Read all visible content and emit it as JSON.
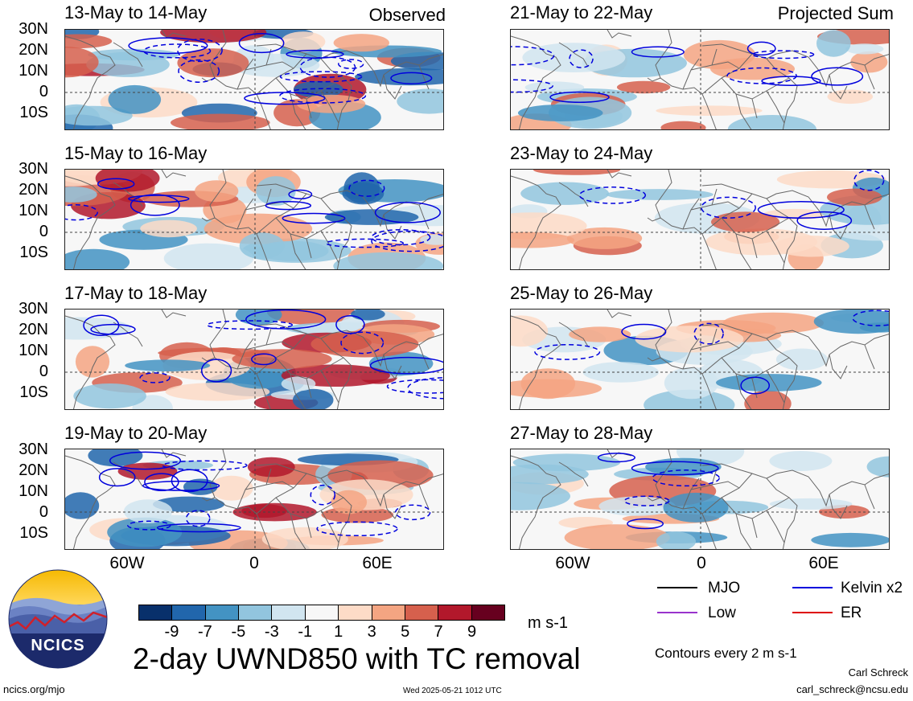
{
  "header": {
    "left_label": "Observed",
    "right_label": "Projected Sum"
  },
  "panels_left": [
    {
      "title": "13-May to 14-May"
    },
    {
      "title": "15-May to 16-May"
    },
    {
      "title": "17-May to 18-May"
    },
    {
      "title": "19-May to 20-May"
    }
  ],
  "panels_right": [
    {
      "title": "21-May to 22-May"
    },
    {
      "title": "23-May to 24-May"
    },
    {
      "title": "25-May to 26-May"
    },
    {
      "title": "27-May to 28-May"
    }
  ],
  "axes": {
    "lat_ticks": [
      "30N",
      "20N",
      "10N",
      "0",
      "10S"
    ],
    "lon_ticks": [
      "60W",
      "0",
      "60E"
    ]
  },
  "colorbar": {
    "labels": [
      "-9",
      "-7",
      "-5",
      "-3",
      "-1",
      "1",
      "3",
      "5",
      "7",
      "9"
    ],
    "colors": [
      "#08306b",
      "#2166ac",
      "#4393c3",
      "#92c5de",
      "#d1e5f0",
      "#f7f7f7",
      "#fddbc7",
      "#f4a582",
      "#d6604d",
      "#b2182b",
      "#67001f"
    ],
    "unit": "m s-1"
  },
  "main_title": "2-day UWND850 with TC removal",
  "legend": {
    "items": [
      {
        "label": "MJO",
        "color": "#000000"
      },
      {
        "label": "Kelvin x2",
        "color": "#0000dd"
      },
      {
        "label": "Low",
        "color": "#9933cc"
      },
      {
        "label": "ER",
        "color": "#dd0000"
      }
    ],
    "note": "Contours every 2 m s-1"
  },
  "logo": {
    "text": "NCICS"
  },
  "footer": {
    "url": "ncics.org/mjo",
    "timestamp": "Wed 2025-05-21 1012 UTC",
    "author": "Carl Schreck",
    "email": "carl_schreck@ncsu.edu"
  }
}
